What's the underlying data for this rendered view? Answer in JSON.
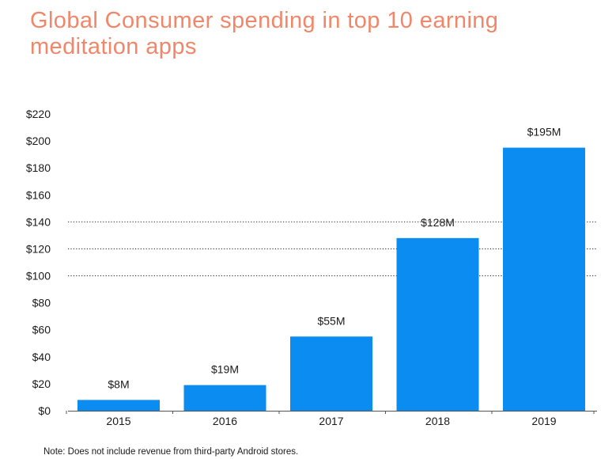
{
  "chart_data": {
    "type": "bar",
    "title": "Global Consumer spending in top 10 earning meditation apps",
    "categories": [
      "2015",
      "2016",
      "2017",
      "2018",
      "2019"
    ],
    "values": [
      8,
      19,
      55,
      128,
      195
    ],
    "data_labels": [
      "$8M",
      "$19M",
      "$55M",
      "$128M",
      "$195M"
    ],
    "y_ticks": [
      0,
      20,
      40,
      60,
      80,
      100,
      120,
      140,
      160,
      180,
      200,
      220
    ],
    "y_tick_labels": [
      "$0",
      "$20",
      "$40",
      "$60",
      "$80",
      "$100",
      "$120",
      "$140",
      "$160",
      "$180",
      "$200",
      "$220"
    ],
    "ylim": [
      0,
      220
    ],
    "xlabel": "",
    "ylabel": "",
    "grid": "dotted horizontal lines at 100, 120, 140",
    "bar_color": "#0a8cf0",
    "title_color": "#f0876a"
  },
  "footnote": "Note: Does not include revenue from third-party Android stores."
}
